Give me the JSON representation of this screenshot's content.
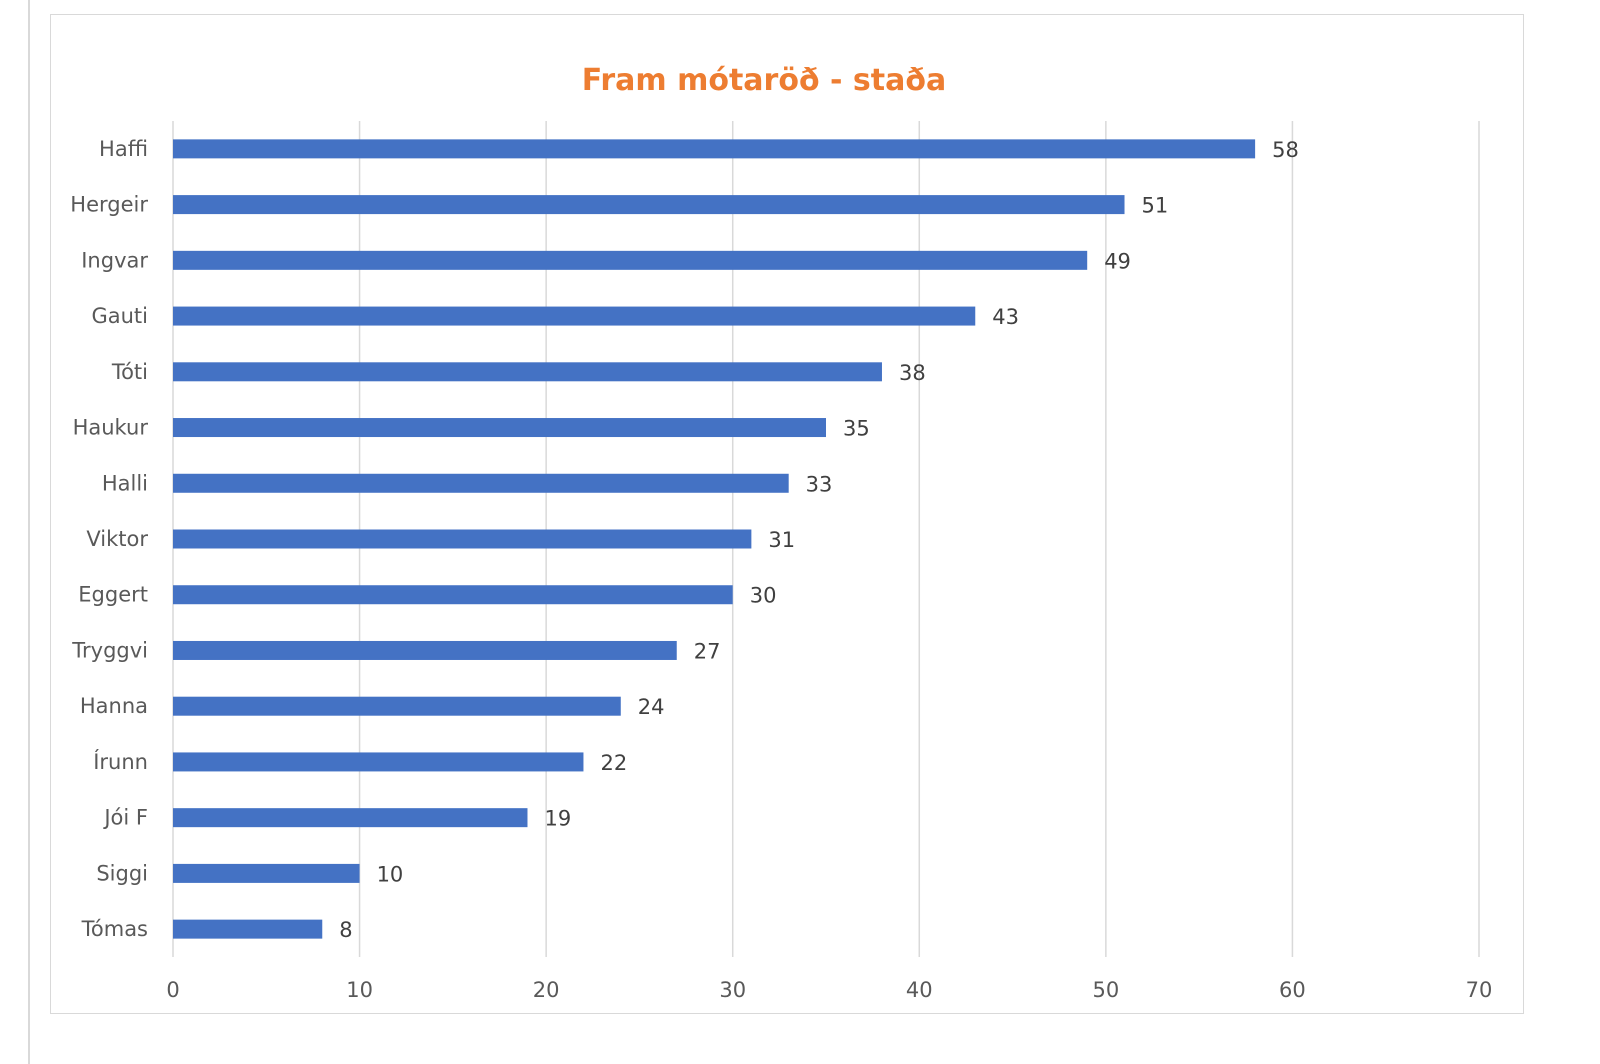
{
  "chart_data": {
    "type": "bar",
    "orientation": "horizontal",
    "title": "Fram mótaröð - staða",
    "xlabel": "",
    "ylabel": "",
    "categories": [
      "Haffi",
      "Hergeir",
      "Ingvar",
      "Gauti",
      "Tóti",
      "Haukur",
      "Halli",
      "Viktor",
      "Eggert",
      "Tryggvi",
      "Hanna",
      "Írunn",
      "Jói F",
      "Siggi",
      "Tómas"
    ],
    "values": [
      58,
      51,
      49,
      43,
      38,
      35,
      33,
      31,
      30,
      27,
      24,
      22,
      19,
      10,
      8
    ],
    "xlim": [
      0,
      70
    ],
    "ticks": [
      0,
      10,
      20,
      30,
      40,
      50,
      60,
      70
    ],
    "tick_labels": [
      "0",
      "10",
      "20",
      "30",
      "40",
      "50",
      "60",
      "70"
    ],
    "grid": "vertical",
    "data_labels": true,
    "bar_color": "#4472c4",
    "title_color": "#ed7d31",
    "gridline_color": "#d9d9d9"
  }
}
